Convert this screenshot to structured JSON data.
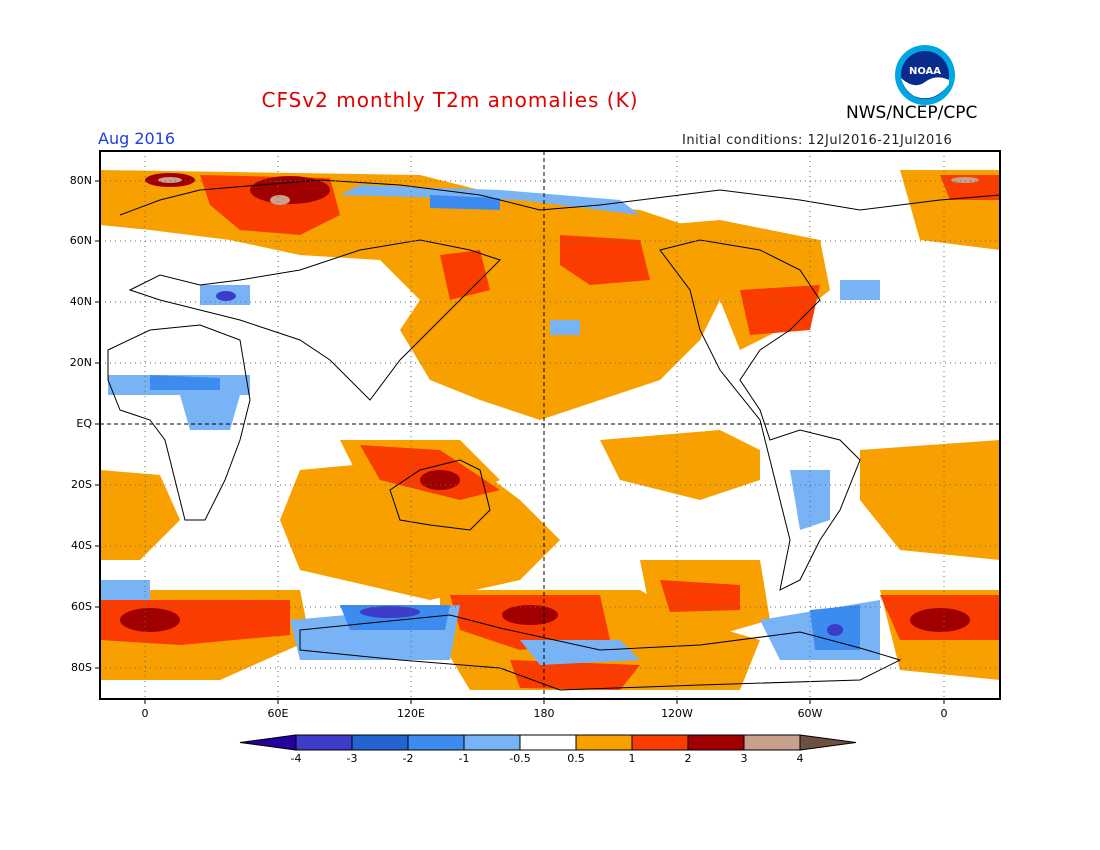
{
  "header": {
    "title": "CFSv2 monthly T2m anomalies (K)",
    "agency": "NWS/NCEP/CPC",
    "logo_text": "NOAA",
    "period": "Aug 2016",
    "initial_conditions": "Initial conditions: 12Jul2016-21Jul2016"
  },
  "colors": {
    "title": "#e00000",
    "period": "#2040e0",
    "levels": [
      "#24009c",
      "#3c3cc8",
      "#2364d2",
      "#3c8cf0",
      "#78b4f5",
      "#ffffff",
      "#f7a000",
      "#fa3c00",
      "#a00000",
      "#c8a08c",
      "#6e5040"
    ]
  },
  "map": {
    "lat_labels": [
      "80N",
      "60N",
      "40N",
      "20N",
      "EQ",
      "20S",
      "40S",
      "60S",
      "80S"
    ],
    "lon_labels": [
      "0",
      "60E",
      "120E",
      "180",
      "120W",
      "60W",
      "0"
    ]
  },
  "colorbar": {
    "labels": [
      "-4",
      "-3",
      "-2",
      "-1",
      "-0.5",
      "0.5",
      "1",
      "2",
      "3",
      "4"
    ]
  }
}
